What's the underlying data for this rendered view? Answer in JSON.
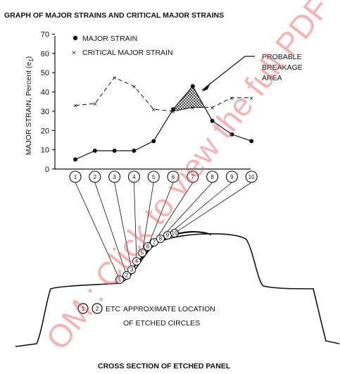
{
  "chart_data": {
    "type": "line",
    "title": "GRAPH OF MAJOR STRAINS AND CRITICAL MAJOR STRAINS",
    "ylabel": "MAJOR STRAIN, Percent (e",
    "ylabel_sub": "1",
    "ylabel_close": ")",
    "ylim": [
      0,
      70
    ],
    "yticks": [
      "0",
      "10",
      "20",
      "30",
      "40",
      "50",
      "60",
      "70"
    ],
    "legend_position": "top-left",
    "x_categories": [
      "1",
      "2",
      "3",
      "4",
      "5",
      "6",
      "7",
      "8",
      "9",
      "10"
    ],
    "series": [
      {
        "name": "MAJOR STRAIN",
        "marker": "dot",
        "line": "solid",
        "values": [
          5,
          9.5,
          9.5,
          9.5,
          14.5,
          31,
          43,
          25,
          18,
          14.5
        ]
      },
      {
        "name": "CRITICAL MAJOR STRAIN",
        "marker": "x",
        "line": "dashed",
        "values": [
          33,
          34,
          47.5,
          43,
          31,
          30,
          32,
          32,
          37,
          37
        ]
      }
    ],
    "annotation": [
      "PROBABLE",
      "BREAKAGE",
      "AREA"
    ]
  },
  "diagram": {
    "title": "CROSS SECTION OF ETCHED PANEL",
    "legend_prefix": "ETC",
    "legend_text": [
      "APPROXIMATE LOCATION",
      "OF ETCHED CIRCLES"
    ],
    "legend_circles": [
      "1",
      "2"
    ],
    "circles": [
      "1",
      "2",
      "3",
      "4",
      "5",
      "6",
      "7",
      "8",
      "9",
      "10"
    ]
  },
  "watermark": "OM : Click to view the full PDF",
  "colors": {
    "ink": "#111111",
    "watermark": "#e35a5a"
  }
}
